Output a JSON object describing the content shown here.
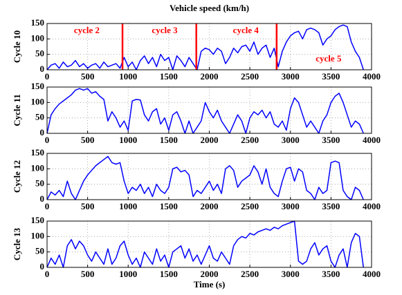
{
  "chart_data": [
    {
      "type": "line",
      "title": "Vehicle speed (km/h)",
      "ylabel": "Cycle 10",
      "color": "#0000ff",
      "x": [
        0,
        50,
        100,
        150,
        200,
        250,
        300,
        350,
        400,
        450,
        500,
        550,
        600,
        650,
        700,
        750,
        800,
        850,
        900,
        950,
        1000,
        1050,
        1100,
        1150,
        1200,
        1250,
        1300,
        1350,
        1400,
        1450,
        1500,
        1550,
        1600,
        1650,
        1700,
        1750,
        1800,
        1850,
        1900,
        1950,
        2000,
        2050,
        2100,
        2150,
        2200,
        2250,
        2300,
        2350,
        2400,
        2450,
        2500,
        2550,
        2600,
        2650,
        2700,
        2750,
        2800,
        2850,
        2900,
        2950,
        3000,
        3050,
        3100,
        3150,
        3200,
        3250,
        3300,
        3350,
        3400,
        3450,
        3500,
        3550,
        3600,
        3650,
        3700,
        3750,
        3800,
        3850,
        3900
      ],
      "values": [
        0,
        15,
        20,
        5,
        25,
        10,
        15,
        30,
        10,
        20,
        5,
        15,
        20,
        5,
        25,
        10,
        15,
        20,
        5,
        40,
        10,
        25,
        0,
        30,
        45,
        20,
        40,
        10,
        50,
        30,
        40,
        0,
        45,
        30,
        10,
        40,
        20,
        0,
        60,
        70,
        65,
        50,
        70,
        60,
        20,
        40,
        70,
        55,
        75,
        80,
        60,
        90,
        50,
        70,
        80,
        40,
        70,
        10,
        60,
        90,
        110,
        120,
        125,
        100,
        130,
        135,
        130,
        120,
        80,
        100,
        110,
        130,
        140,
        145,
        140,
        90,
        60,
        40,
        0
      ],
      "xlim": [
        0,
        4000
      ],
      "ylim": [
        0,
        150
      ],
      "xticks": [
        0,
        500,
        1000,
        1500,
        2000,
        2500,
        3000,
        3500,
        4000
      ],
      "yticks": [
        0,
        50,
        100,
        150
      ],
      "grid": true,
      "vlines": {
        "color": "#ff0000",
        "x": [
          930,
          1840,
          2830
        ]
      },
      "annotations": [
        {
          "text": "cycle 2",
          "x": 490,
          "y": 125
        },
        {
          "text": "cycle 3",
          "x": 1450,
          "y": 125
        },
        {
          "text": "cycle 4",
          "x": 2450,
          "y": 125
        },
        {
          "text": "cycle 5",
          "x": 3470,
          "y": 33
        }
      ],
      "annotation_color": "#ff0000"
    },
    {
      "type": "line",
      "ylabel": "Cycle 11",
      "color": "#0000ff",
      "x": [
        0,
        50,
        100,
        150,
        200,
        250,
        300,
        350,
        400,
        450,
        500,
        550,
        600,
        650,
        700,
        750,
        800,
        850,
        900,
        950,
        1000,
        1050,
        1100,
        1150,
        1200,
        1250,
        1300,
        1350,
        1400,
        1450,
        1500,
        1550,
        1600,
        1650,
        1700,
        1750,
        1800,
        1850,
        1900,
        1950,
        2000,
        2050,
        2100,
        2150,
        2200,
        2250,
        2300,
        2350,
        2400,
        2450,
        2500,
        2550,
        2600,
        2650,
        2700,
        2750,
        2800,
        2850,
        2900,
        2950,
        3000,
        3050,
        3100,
        3150,
        3200,
        3250,
        3300,
        3350,
        3400,
        3450,
        3500,
        3550,
        3600,
        3650,
        3700,
        3750,
        3800,
        3850,
        3900
      ],
      "values": [
        0,
        60,
        80,
        95,
        105,
        115,
        125,
        140,
        145,
        140,
        145,
        130,
        135,
        120,
        110,
        40,
        70,
        50,
        20,
        40,
        10,
        105,
        110,
        108,
        60,
        40,
        70,
        80,
        30,
        50,
        10,
        60,
        70,
        40,
        0,
        40,
        0,
        20,
        40,
        100,
        70,
        50,
        75,
        40,
        20,
        0,
        30,
        60,
        40,
        0,
        50,
        70,
        60,
        75,
        50,
        70,
        30,
        20,
        40,
        10,
        80,
        115,
        100,
        60,
        20,
        40,
        20,
        0,
        40,
        60,
        100,
        120,
        130,
        100,
        60,
        20,
        40,
        30,
        0
      ],
      "xlim": [
        0,
        4000
      ],
      "ylim": [
        0,
        150
      ],
      "xticks": [
        0,
        500,
        1000,
        1500,
        2000,
        2500,
        3000,
        3500,
        4000
      ],
      "yticks": [
        0,
        50,
        100,
        150
      ],
      "grid": true
    },
    {
      "type": "line",
      "ylabel": "Cycle 12",
      "color": "#0000ff",
      "x": [
        0,
        50,
        100,
        150,
        200,
        250,
        300,
        350,
        400,
        450,
        500,
        550,
        600,
        650,
        700,
        750,
        800,
        850,
        900,
        950,
        1000,
        1050,
        1100,
        1150,
        1200,
        1250,
        1300,
        1350,
        1400,
        1450,
        1500,
        1550,
        1600,
        1650,
        1700,
        1750,
        1800,
        1850,
        1900,
        1950,
        2000,
        2050,
        2100,
        2150,
        2200,
        2250,
        2300,
        2350,
        2400,
        2450,
        2500,
        2550,
        2600,
        2650,
        2700,
        2750,
        2800,
        2850,
        2900,
        2950,
        3000,
        3050,
        3100,
        3150,
        3200,
        3250,
        3300,
        3350,
        3400,
        3450,
        3500,
        3550,
        3600,
        3650,
        3700,
        3750,
        3800,
        3850,
        3900
      ],
      "values": [
        0,
        25,
        15,
        30,
        10,
        60,
        20,
        0,
        30,
        60,
        80,
        95,
        110,
        120,
        130,
        140,
        120,
        115,
        120,
        60,
        20,
        40,
        30,
        50,
        20,
        40,
        10,
        50,
        30,
        20,
        40,
        100,
        105,
        90,
        95,
        80,
        10,
        30,
        20,
        40,
        60,
        30,
        50,
        20,
        100,
        110,
        95,
        40,
        60,
        70,
        80,
        110,
        90,
        50,
        100,
        40,
        20,
        10,
        60,
        100,
        105,
        60,
        100,
        90,
        30,
        20,
        0,
        40,
        20,
        30,
        120,
        125,
        120,
        30,
        10,
        0,
        40,
        30,
        0
      ],
      "xlim": [
        0,
        4000
      ],
      "ylim": [
        0,
        150
      ],
      "xticks": [
        0,
        500,
        1000,
        1500,
        2000,
        2500,
        3000,
        3500,
        4000
      ],
      "yticks": [
        0,
        50,
        100,
        150
      ],
      "grid": true
    },
    {
      "type": "line",
      "ylabel": "Cycle 13",
      "xlabel": "Time (s)",
      "color": "#0000ff",
      "x": [
        0,
        50,
        100,
        150,
        200,
        250,
        300,
        350,
        400,
        450,
        500,
        550,
        600,
        650,
        700,
        750,
        800,
        850,
        900,
        950,
        1000,
        1050,
        1100,
        1150,
        1200,
        1250,
        1300,
        1350,
        1400,
        1450,
        1500,
        1550,
        1600,
        1650,
        1700,
        1750,
        1800,
        1850,
        1900,
        1950,
        2000,
        2050,
        2100,
        2150,
        2200,
        2250,
        2300,
        2350,
        2400,
        2450,
        2500,
        2550,
        2600,
        2650,
        2700,
        2750,
        2800,
        2850,
        2900,
        2950,
        3000,
        3050,
        3100,
        3150,
        3200,
        3250,
        3300,
        3350,
        3400,
        3450,
        3500,
        3550,
        3600,
        3650,
        3700,
        3750,
        3800,
        3850,
        3900
      ],
      "values": [
        0,
        30,
        10,
        40,
        0,
        70,
        90,
        60,
        85,
        70,
        40,
        20,
        50,
        30,
        10,
        60,
        10,
        30,
        70,
        85,
        40,
        10,
        30,
        0,
        50,
        30,
        10,
        60,
        20,
        40,
        0,
        50,
        60,
        70,
        30,
        60,
        20,
        40,
        10,
        40,
        70,
        30,
        20,
        50,
        30,
        10,
        70,
        90,
        100,
        95,
        110,
        105,
        115,
        120,
        125,
        120,
        130,
        125,
        135,
        140,
        145,
        150,
        20,
        10,
        20,
        60,
        80,
        40,
        60,
        70,
        20,
        0,
        40,
        60,
        0,
        80,
        110,
        100,
        0
      ],
      "xlim": [
        0,
        4000
      ],
      "ylim": [
        0,
        150
      ],
      "xticks": [
        0,
        500,
        1000,
        1500,
        2000,
        2500,
        3000,
        3500,
        4000
      ],
      "yticks": [
        0,
        50,
        100,
        150
      ],
      "grid": true
    }
  ]
}
